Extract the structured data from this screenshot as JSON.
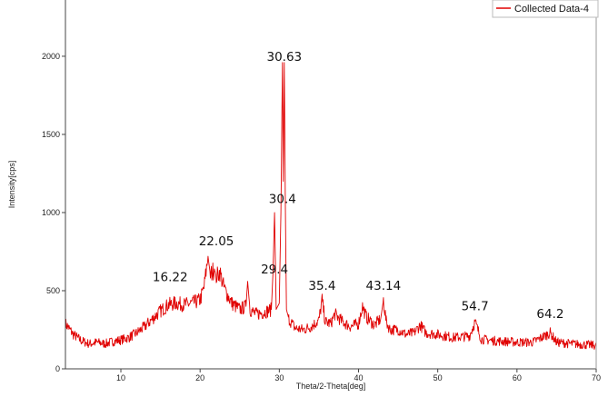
{
  "chart_data": {
    "type": "line",
    "title": "",
    "xlabel": "Theta/2-Theta[deg]",
    "ylabel": "Intensity[cps]",
    "xlim": [
      3,
      70
    ],
    "ylim": [
      0,
      2360
    ],
    "xticks": [
      10,
      20,
      30,
      40,
      50,
      60,
      70
    ],
    "yticks": [
      0,
      500,
      1000,
      1500,
      2000
    ],
    "grid": false,
    "legend": {
      "position": "top-right",
      "entries": [
        "Collected Data-4"
      ]
    },
    "series": [
      {
        "name": "Collected Data-4",
        "color": "#e00000",
        "x": [
          3,
          4,
          5,
          6,
          7,
          8,
          9,
          10,
          11,
          12,
          13,
          14,
          15,
          16,
          17,
          18,
          19,
          20,
          20.5,
          21,
          21.3,
          21.8,
          22.05,
          22.5,
          23,
          23.5,
          24,
          25,
          25.8,
          26,
          26.3,
          27,
          28,
          29,
          29.2,
          29.4,
          29.6,
          29.8,
          30.0,
          30.2,
          30.4,
          30.5,
          30.63,
          30.75,
          30.9,
          31.2,
          32,
          33,
          34,
          35,
          35.4,
          35.8,
          36.5,
          37,
          38,
          39,
          40,
          40.5,
          41,
          42,
          42.8,
          43.14,
          43.5,
          44,
          45,
          46,
          47,
          47.8,
          48.5,
          50,
          52,
          54,
          54.7,
          55.5,
          57,
          60,
          62,
          64.2,
          65,
          67,
          70
        ],
        "y": [
          290,
          220,
          180,
          160,
          170,
          160,
          175,
          185,
          200,
          230,
          270,
          320,
          370,
          410,
          420,
          410,
          420,
          440,
          520,
          720,
          600,
          640,
          590,
          620,
          520,
          470,
          420,
          380,
          400,
          560,
          380,
          350,
          360,
          380,
          620,
          1000,
          380,
          400,
          420,
          1000,
          1960,
          1200,
          1960,
          1100,
          380,
          320,
          260,
          250,
          270,
          310,
          440,
          300,
          290,
          350,
          300,
          270,
          290,
          400,
          330,
          280,
          320,
          440,
          300,
          250,
          250,
          220,
          230,
          280,
          230,
          220,
          200,
          210,
          300,
          190,
          180,
          170,
          170,
          230,
          170,
          160,
          150
        ]
      }
    ],
    "annotations": [
      {
        "text": "16.22",
        "x": 16.22,
        "y": 560
      },
      {
        "text": "22.05",
        "x": 22.05,
        "y": 790
      },
      {
        "text": "29.4",
        "x": 29.4,
        "y": 610
      },
      {
        "text": "30.4",
        "x": 30.4,
        "y": 1060
      },
      {
        "text": "30.63",
        "x": 30.63,
        "y": 1970
      },
      {
        "text": "35.4",
        "x": 35.4,
        "y": 505
      },
      {
        "text": "43.14",
        "x": 43.14,
        "y": 505
      },
      {
        "text": "54.7",
        "x": 54.7,
        "y": 375
      },
      {
        "text": "64.2",
        "x": 64.2,
        "y": 325
      }
    ]
  }
}
